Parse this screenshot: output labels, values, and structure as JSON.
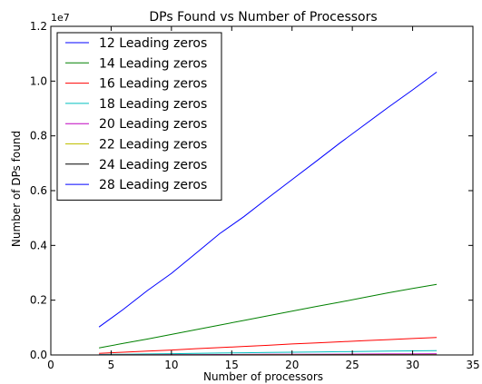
{
  "chart_data": {
    "type": "line",
    "title": "DPs Found vs Number of Processors",
    "xlabel": "Number of processors",
    "ylabel": "Number of DPs found",
    "offset_label": "1e7",
    "xlim": [
      0,
      35
    ],
    "ylim": [
      0,
      1.2
    ],
    "x_ticks": [
      0,
      5,
      10,
      15,
      20,
      25,
      30,
      35
    ],
    "x_tick_labels": [
      "0",
      "5",
      "10",
      "15",
      "20",
      "25",
      "30",
      "35"
    ],
    "y_ticks": [
      0,
      0.2,
      0.4,
      0.6,
      0.8,
      1.0,
      1.2
    ],
    "y_tick_labels": [
      "0.0",
      "0.2",
      "0.4",
      "0.6",
      "0.8",
      "1.0",
      "1.2"
    ],
    "grid": false,
    "legend_position": "top-left",
    "x": [
      4,
      6,
      8,
      10,
      12,
      14,
      16,
      18,
      20,
      22,
      24,
      26,
      28,
      30,
      32
    ],
    "series": [
      {
        "name": "12 Leading zeros",
        "color": "#0000ff",
        "values": [
          0.102,
          0.166,
          0.235,
          0.298,
          0.37,
          0.443,
          0.505,
          0.573,
          0.64,
          0.707,
          0.775,
          0.84,
          0.905,
          0.968,
          1.033
        ]
      },
      {
        "name": "14 Leading zeros",
        "color": "#008000",
        "values": [
          0.026,
          0.042,
          0.058,
          0.075,
          0.092,
          0.109,
          0.126,
          0.143,
          0.16,
          0.177,
          0.193,
          0.21,
          0.227,
          0.243,
          0.258
        ]
      },
      {
        "name": "16 Leading zeros",
        "color": "#ff0000",
        "values": [
          0.006,
          0.01,
          0.014,
          0.018,
          0.023,
          0.027,
          0.031,
          0.035,
          0.04,
          0.044,
          0.048,
          0.052,
          0.056,
          0.06,
          0.064
        ]
      },
      {
        "name": "18 Leading zeros",
        "color": "#00bfbf",
        "values": [
          0.0016,
          0.0025,
          0.0036,
          0.0046,
          0.0057,
          0.0068,
          0.0078,
          0.0089,
          0.01,
          0.011,
          0.012,
          0.013,
          0.014,
          0.015,
          0.016
        ]
      },
      {
        "name": "20 Leading zeros",
        "color": "#bf00bf",
        "values": [
          0.0004,
          0.0006,
          0.0009,
          0.0012,
          0.0014,
          0.0017,
          0.002,
          0.0022,
          0.0025,
          0.0028,
          0.003,
          0.0033,
          0.0035,
          0.0038,
          0.004
        ]
      },
      {
        "name": "22 Leading zeros",
        "color": "#bfbf00",
        "values": [
          0.0001,
          0.0002,
          0.0002,
          0.0003,
          0.0004,
          0.0004,
          0.0005,
          0.0006,
          0.0006,
          0.0007,
          0.0008,
          0.0008,
          0.0009,
          0.0009,
          0.001
        ]
      },
      {
        "name": "24 Leading zeros",
        "color": "#000000",
        "values": [
          3e-05,
          4e-05,
          6e-05,
          7e-05,
          9e-05,
          0.00011,
          0.00012,
          0.00014,
          0.00016,
          0.00017,
          0.00019,
          0.0002,
          0.00022,
          0.00024,
          0.00025
        ]
      },
      {
        "name": "28 Leading zeros",
        "color": "#0000ff",
        "values": [
          2e-06,
          3e-06,
          4e-06,
          5e-06,
          6e-06,
          7e-06,
          8e-06,
          9e-06,
          1e-05,
          1.1e-05,
          1.2e-05,
          1.3e-05,
          1.4e-05,
          1.5e-05,
          1.6e-05
        ]
      }
    ]
  }
}
